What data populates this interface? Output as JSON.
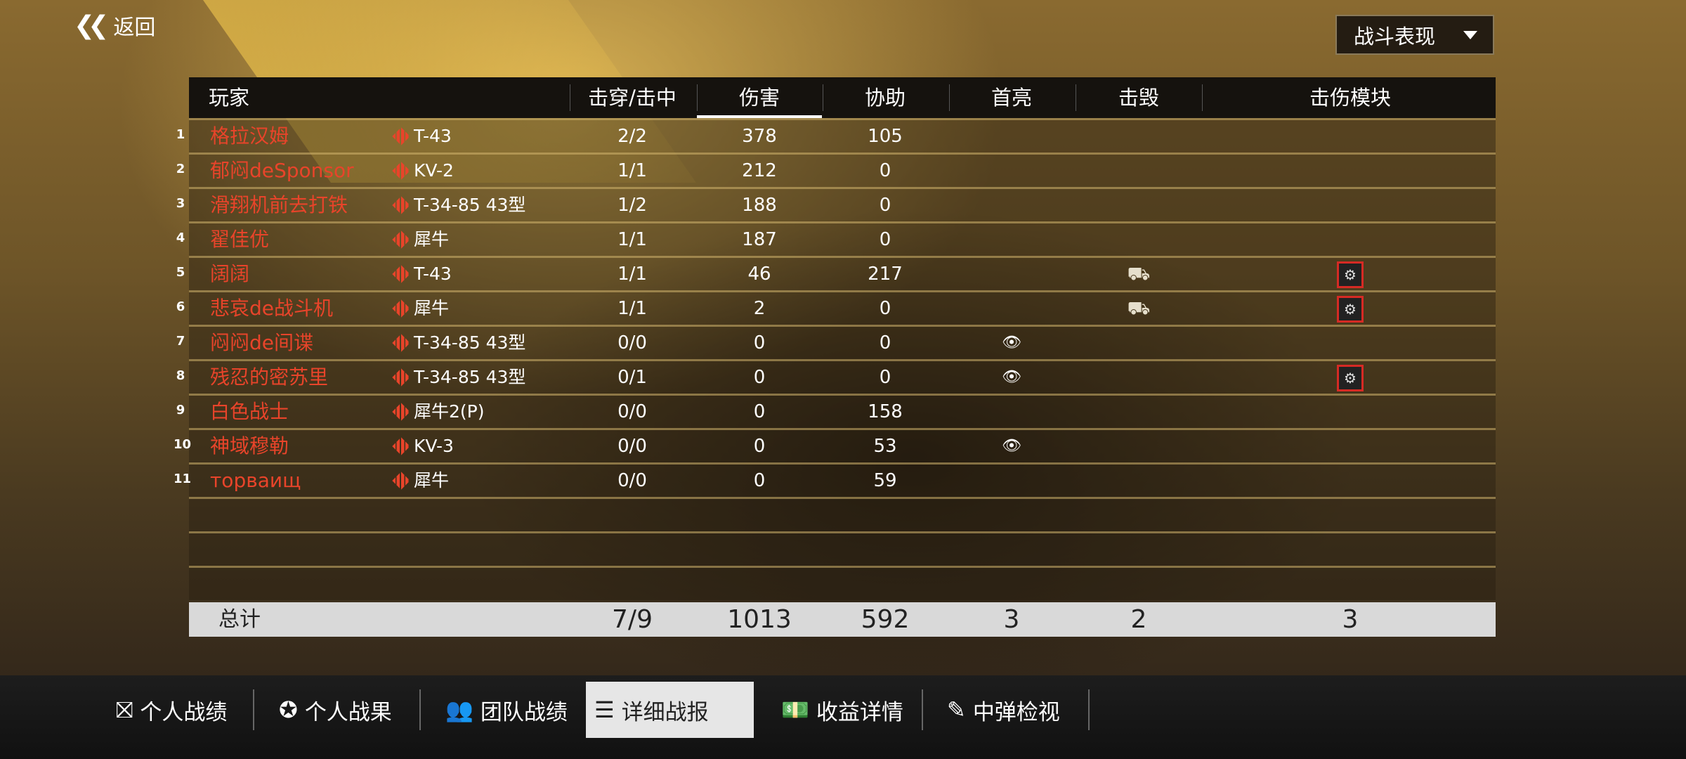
{
  "back_label": "返回",
  "dropdown": {
    "selected": "战斗表现"
  },
  "columns": [
    "玩家",
    "击穿/击中",
    "伤害",
    "协助",
    "首亮",
    "击毁",
    "击伤模块"
  ],
  "active_column": "伤害",
  "rows": [
    {
      "num": "1",
      "name": "格拉汉姆",
      "tank": "T-43",
      "pen": "2/2",
      "dmg": "378",
      "assist": "105",
      "spot": false,
      "kill": false,
      "module": ""
    },
    {
      "num": "2",
      "name": "郁闷deSponsor",
      "tank": "KV-2",
      "pen": "1/1",
      "dmg": "212",
      "assist": "0",
      "spot": false,
      "kill": false,
      "module": ""
    },
    {
      "num": "3",
      "name": "滑翔机前去打铁",
      "tank": "T-34-85 43型",
      "pen": "1/2",
      "dmg": "188",
      "assist": "0",
      "spot": false,
      "kill": false,
      "module": ""
    },
    {
      "num": "4",
      "name": "翟佳优",
      "tank": "犀牛",
      "pen": "1/1",
      "dmg": "187",
      "assist": "0",
      "spot": false,
      "kill": false,
      "module": ""
    },
    {
      "num": "5",
      "name": "阔阔",
      "tank": "T-43",
      "pen": "1/1",
      "dmg": "46",
      "assist": "217",
      "spot": false,
      "kill": true,
      "module": "engine-icon"
    },
    {
      "num": "6",
      "name": "悲哀de战斗机",
      "tank": "犀牛",
      "pen": "1/1",
      "dmg": "2",
      "assist": "0",
      "spot": false,
      "kill": true,
      "module": "turret-icon"
    },
    {
      "num": "7",
      "name": "闷闷de间谍",
      "tank": "T-34-85 43型",
      "pen": "0/0",
      "dmg": "0",
      "assist": "0",
      "spot": true,
      "kill": false,
      "module": ""
    },
    {
      "num": "8",
      "name": "残忍的密苏里",
      "tank": "T-34-85 43型",
      "pen": "0/1",
      "dmg": "0",
      "assist": "0",
      "spot": true,
      "kill": false,
      "module": "track-icon"
    },
    {
      "num": "9",
      "name": "白色战士",
      "tank": "犀牛2(P)",
      "pen": "0/0",
      "dmg": "0",
      "assist": "158",
      "spot": false,
      "kill": false,
      "module": ""
    },
    {
      "num": "10",
      "name": "神域穆勒",
      "tank": "KV-3",
      "pen": "0/0",
      "dmg": "0",
      "assist": "53",
      "spot": true,
      "kill": false,
      "module": ""
    },
    {
      "num": "11",
      "name": "торваищ",
      "tank": "犀牛",
      "pen": "0/0",
      "dmg": "0",
      "assist": "59",
      "spot": false,
      "kill": false,
      "module": ""
    }
  ],
  "empty_rows": 3,
  "total": {
    "label": "总计",
    "pen": "7/9",
    "dmg": "1013",
    "assist": "592",
    "spot": "3",
    "kill": "2",
    "module": "3"
  },
  "tabs": [
    {
      "label": "个人战绩",
      "icon": "star-card-icon"
    },
    {
      "label": "个人战果",
      "icon": "medal-icon"
    },
    {
      "label": "团队战绩",
      "icon": "team-icon"
    },
    {
      "label": "详细战报",
      "icon": "list-icon",
      "active": true
    },
    {
      "label": "收益详情",
      "icon": "money-icon"
    },
    {
      "label": "中弹检视",
      "icon": "shell-hit-icon"
    }
  ],
  "colors": {
    "player_name": "#e8442a",
    "module_border": "#d62a24"
  }
}
